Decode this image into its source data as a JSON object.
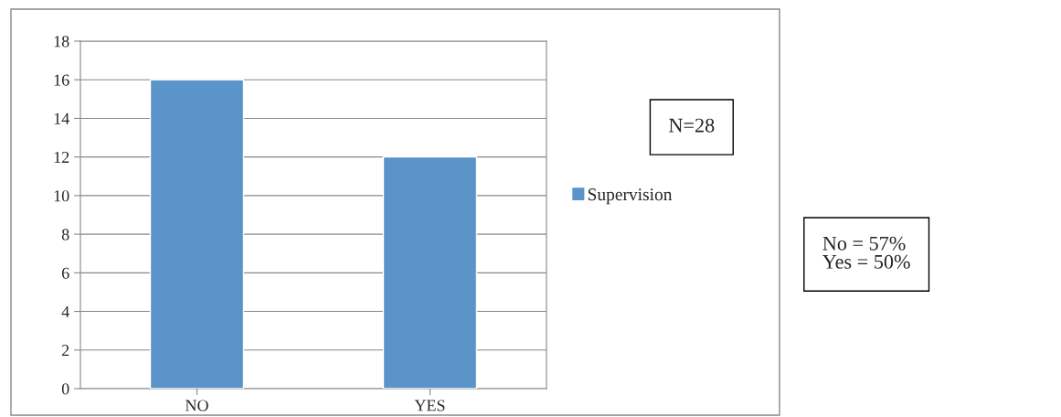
{
  "chart_data": {
    "type": "bar",
    "categories": [
      "NO",
      "YES"
    ],
    "series": [
      {
        "name": "Supervision",
        "color": "#5b94c9",
        "values": [
          16,
          12
        ]
      }
    ],
    "ylim": [
      0,
      18
    ],
    "yticks": [
      0,
      2,
      4,
      6,
      8,
      10,
      12,
      14,
      16,
      18
    ],
    "grid": "y",
    "legend": "right",
    "annotations": [
      "N=28",
      "No = 57%\nYes = 50%"
    ]
  }
}
